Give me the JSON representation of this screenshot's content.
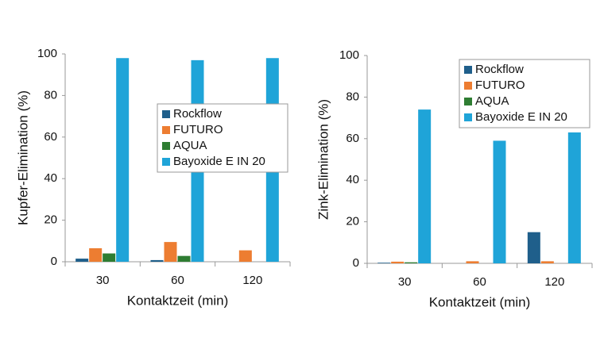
{
  "chart_data": [
    {
      "type": "bar",
      "y_label": "Kupfer-Elimination (%)",
      "x_label": "Kontaktzeit (min)",
      "categories": [
        "30",
        "60",
        "120"
      ],
      "series": [
        {
          "name": "Rockflow",
          "color": "#1f5f8b",
          "values": [
            1.5,
            0.8,
            0
          ]
        },
        {
          "name": "FUTURO",
          "color": "#ed7d31",
          "values": [
            6.5,
            9.5,
            5.5
          ]
        },
        {
          "name": "AQUA",
          "color": "#2e7d32",
          "values": [
            4,
            2.8,
            0
          ]
        },
        {
          "name": "Bayoxide E IN 20",
          "color": "#1fa4d8",
          "values": [
            98,
            97,
            98
          ]
        }
      ],
      "ylim": [
        0,
        100
      ],
      "yticks": [
        0,
        20,
        40,
        60,
        80,
        100
      ],
      "legend": "center right"
    },
    {
      "type": "bar",
      "y_label": "Zink-Elimination (%)",
      "x_label": "Kontaktzeit (min)",
      "categories": [
        "30",
        "60",
        "120"
      ],
      "series": [
        {
          "name": "Rockflow",
          "color": "#1f5f8b",
          "values": [
            0.3,
            0,
            15
          ]
        },
        {
          "name": "FUTURO",
          "color": "#ed7d31",
          "values": [
            0.8,
            1,
            1
          ]
        },
        {
          "name": "AQUA",
          "color": "#2e7d32",
          "values": [
            0.5,
            0,
            0
          ]
        },
        {
          "name": "Bayoxide E IN 20",
          "color": "#1fa4d8",
          "values": [
            74,
            59,
            63
          ]
        }
      ],
      "ylim": [
        0,
        100
      ],
      "yticks": [
        0,
        20,
        40,
        60,
        80,
        100
      ],
      "legend": "upper right"
    }
  ]
}
